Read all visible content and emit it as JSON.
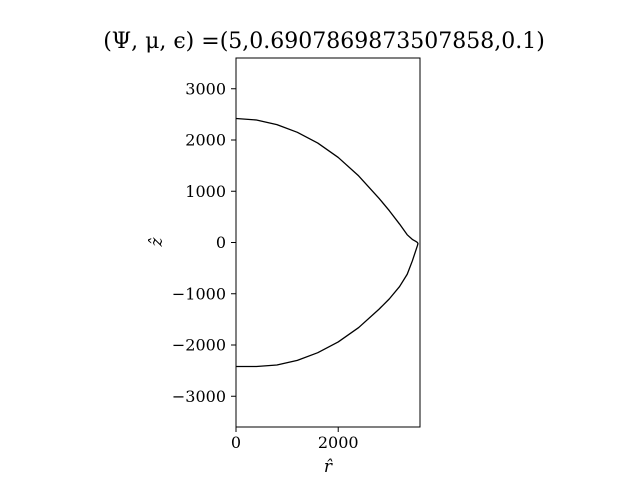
{
  "chart_data": {
    "type": "line",
    "title": "(Ψ, μ, ϵ) =(5,0.6907869873507858,0.1)",
    "xlabel": "r̂",
    "ylabel": "ẑ",
    "xlim": [
      0,
      3600
    ],
    "ylim": [
      -3600,
      3600
    ],
    "xticks": [
      0,
      2000
    ],
    "xtick_labels": [
      "0",
      "2000"
    ],
    "yticks": [
      3000,
      2000,
      1000,
      0,
      -1000,
      -2000,
      -3000
    ],
    "ytick_labels": [
      "3000",
      "2000",
      "1000",
      "0",
      "−1000",
      "−2000",
      "−3000"
    ],
    "grid": false,
    "legend": "none",
    "line_color": "#000000",
    "series": [
      {
        "x": [
          0,
          400,
          800,
          1200,
          1600,
          2000,
          2400,
          2800,
          3000,
          3200,
          3350,
          3450,
          3520,
          3550,
          3560,
          3550,
          3520,
          3450,
          3350,
          3200,
          3000,
          2800,
          2400,
          2000,
          1600,
          1200,
          800,
          400,
          0
        ],
        "y": [
          2420,
          2390,
          2300,
          2150,
          1940,
          1660,
          1300,
          860,
          620,
          360,
          150,
          60,
          20,
          0,
          -20,
          -60,
          -150,
          -360,
          -620,
          -860,
          -1100,
          -1300,
          -1660,
          -1940,
          -2150,
          -2300,
          -2390,
          -2420,
          -2420
        ]
      }
    ]
  }
}
